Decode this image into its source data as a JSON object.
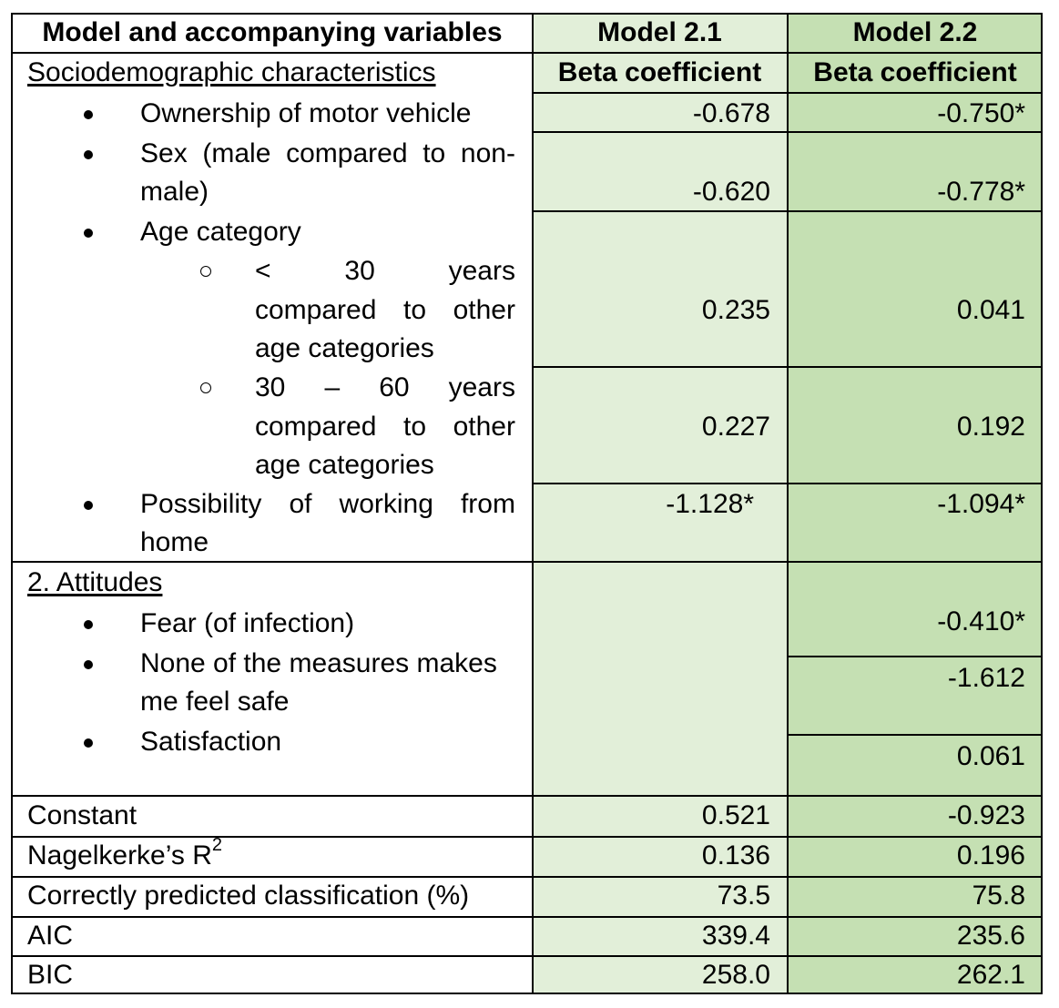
{
  "header": {
    "col_variables": "Model and accompanying variables",
    "col_model21": "Model 2.1",
    "col_model22": "Model 2.2"
  },
  "section1": {
    "title": "Sociodemographic characteristics",
    "beta_label": "Beta coefficient"
  },
  "rows": {
    "ownership": {
      "label": "Ownership of motor vehicle",
      "m21": "-0.678",
      "m22": "-0.750*"
    },
    "sex": {
      "label_line1": [
        "Sex",
        "(male",
        "compared",
        "to",
        "non-"
      ],
      "label_line2": "male)",
      "m21": "-0.620",
      "m22": "-0.778*"
    },
    "age": {
      "label": "Age category"
    },
    "age_under30": {
      "line1": [
        "<",
        "30",
        "years"
      ],
      "line2": [
        "compared",
        "to",
        "other"
      ],
      "line3": "age categories",
      "m21": "0.235",
      "m22": "0.041"
    },
    "age_30_60": {
      "line1": [
        "30",
        "–",
        "60",
        "years"
      ],
      "line2": [
        "compared",
        "to",
        "other"
      ],
      "line3": "age categories",
      "m21": "0.227",
      "m22": "0.192"
    },
    "wfh": {
      "line1": [
        "Possibility",
        "of",
        "working",
        "from"
      ],
      "line2": "home",
      "m21": "-1.128*",
      "m22": "-1.094*"
    }
  },
  "section2": {
    "title": "2. Attitudes",
    "fear": {
      "label": "Fear (of infection)",
      "m22": "-0.410*"
    },
    "none": {
      "line1": "None of the measures makes",
      "line2": "me feel safe",
      "m22": "-1.612"
    },
    "satisfaction": {
      "label": "Satisfaction",
      "m22": "0.061"
    }
  },
  "stats": {
    "constant": {
      "label": "Constant",
      "m21": "0.521",
      "m22": "-0.923"
    },
    "r2": {
      "label": "Nagelkerke’s R",
      "sup": "2",
      "m21": "0.136",
      "m22": "0.196"
    },
    "correct": {
      "label": "Correctly predicted classification (%)",
      "m21": "73.5",
      "m22": "75.8"
    },
    "aic": {
      "label": "AIC",
      "m21": "339.4",
      "m22": "235.6"
    },
    "bic": {
      "label": "BIC",
      "m21": "258.0",
      "m22": "262.1"
    }
  },
  "colors": {
    "model21_bg": "#e2efd9",
    "model22_bg": "#c5e0b3",
    "border": "#000000"
  }
}
